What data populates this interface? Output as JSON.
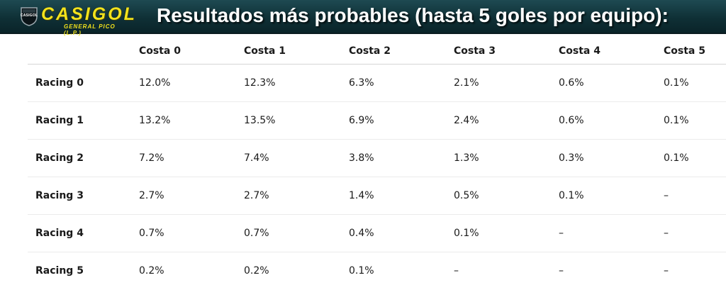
{
  "banner": {
    "logo_text": "CASIGOL",
    "logo_subtext": "GENERAL PICO (L.P.)",
    "logo_badge_text": "CASIGOL",
    "title": "Resultados más probables (hasta 5 goles por equipo):",
    "colors": {
      "background": "#0f3036",
      "logo": "#f2e21c",
      "title": "#ffffff"
    }
  },
  "table": {
    "corner_header": "",
    "columns": [
      "Costa 0",
      "Costa 1",
      "Costa 2",
      "Costa 3",
      "Costa 4",
      "Costa 5"
    ],
    "rows": [
      {
        "label": "Racing 0",
        "cells": [
          "12.0%",
          "12.3%",
          "6.3%",
          "2.1%",
          "0.6%",
          "0.1%"
        ]
      },
      {
        "label": "Racing 1",
        "cells": [
          "13.2%",
          "13.5%",
          "6.9%",
          "2.4%",
          "0.6%",
          "0.1%"
        ]
      },
      {
        "label": "Racing 2",
        "cells": [
          "7.2%",
          "7.4%",
          "3.8%",
          "1.3%",
          "0.3%",
          "0.1%"
        ]
      },
      {
        "label": "Racing 3",
        "cells": [
          "2.7%",
          "2.7%",
          "1.4%",
          "0.5%",
          "0.1%",
          "–"
        ]
      },
      {
        "label": "Racing 4",
        "cells": [
          "0.7%",
          "0.7%",
          "0.4%",
          "0.1%",
          "–",
          "–"
        ]
      },
      {
        "label": "Racing 5",
        "cells": [
          "0.2%",
          "0.2%",
          "0.1%",
          "–",
          "–",
          "–"
        ]
      }
    ]
  }
}
